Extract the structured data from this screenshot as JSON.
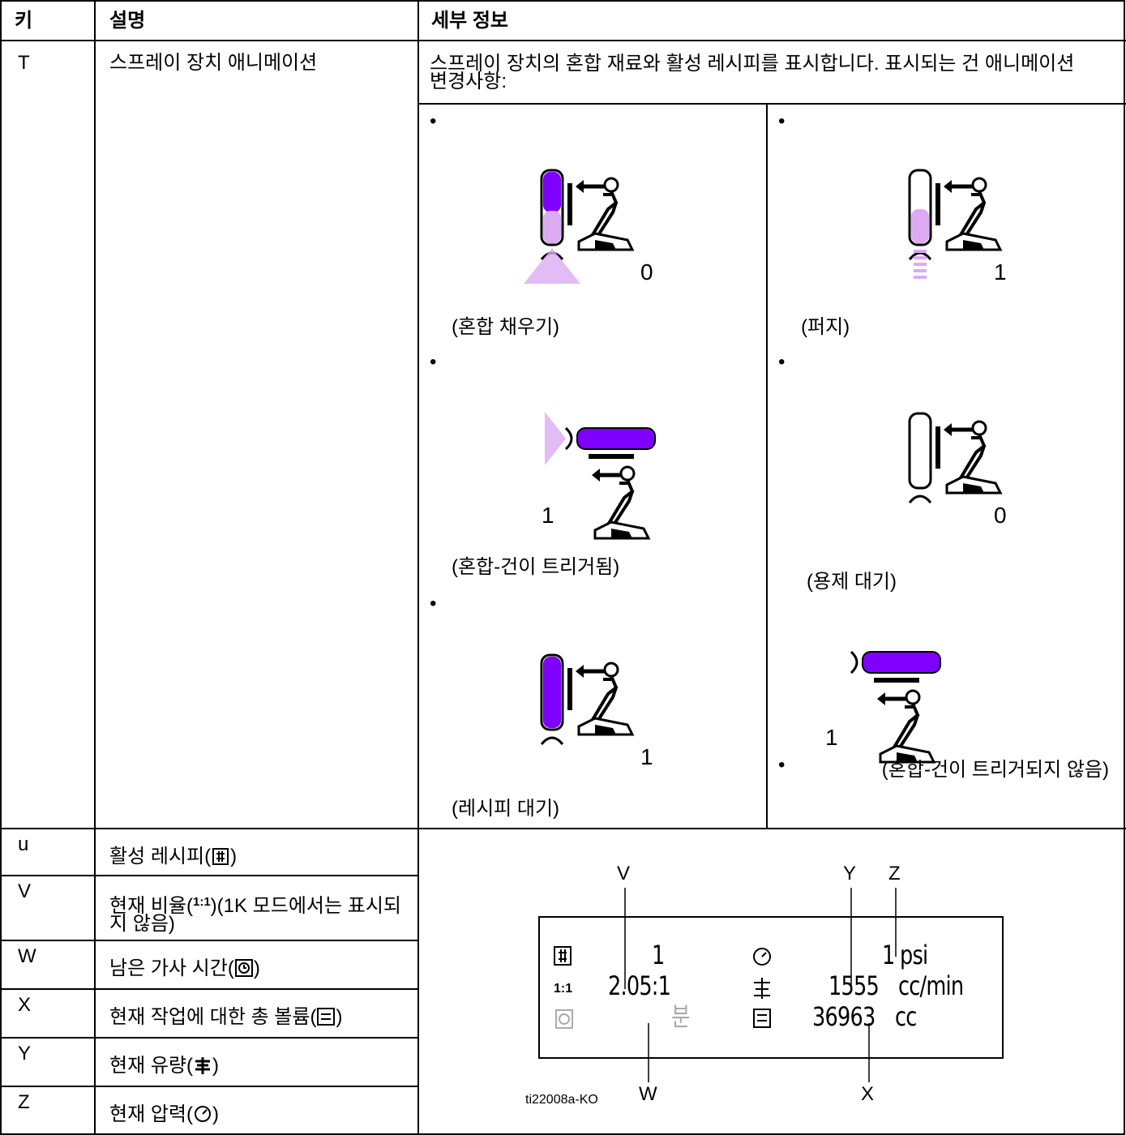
{
  "table": {
    "header": [
      "키",
      "설명",
      "세부 정보"
    ],
    "row_t": {
      "key": "T",
      "description": "스프레이 장치 애니메이션",
      "details": "스프레이 장치의 혼합 재료와 활성 레시피를 표시합니다. 표시되는 건 애니메이션 변경사항:",
      "bullet": "•",
      "states": [
        {
          "caption": "(혼합 채우기)",
          "number": "0"
        },
        {
          "caption": "(퍼지)",
          "number": "1"
        },
        {
          "caption": "(혼합-건이 트리거됨)",
          "number": "1"
        },
        {
          "caption": "(용제 대기)",
          "number": "0"
        },
        {
          "caption": "(레시피 대기)",
          "number": "1"
        },
        {
          "caption": "(혼합-건이 트리거되지 않음)",
          "number": "1"
        }
      ]
    },
    "rows": [
      {
        "key": "u",
        "before": "활성 레시피(",
        "after": ")"
      },
      {
        "key": "V",
        "before": "현재 비율(",
        "icon_text": "1:1",
        "after": ")(1K 모드에서는 표시되지 않음)"
      },
      {
        "key": "W",
        "before": "남은 가사 시간(",
        "after": ")"
      },
      {
        "key": "X",
        "before": "현재 작업에 대한 총 볼륨(",
        "after": ")"
      },
      {
        "key": "Y",
        "before": "현재 유량(",
        "after": ")"
      },
      {
        "key": "Z",
        "before": "현재 압력(",
        "after": ")"
      }
    ]
  },
  "display": {
    "callouts": {
      "v": "V",
      "y": "Y",
      "z": "Z",
      "w": "W",
      "x": "X"
    },
    "recipe": "1",
    "ratio_icon": "1:1",
    "ratio": "2.05:1",
    "time_unit": "분",
    "pressure": "1",
    "pressure_unit": "psi",
    "flow": "1555",
    "flow_unit": "cc/min",
    "volume": "36963",
    "volume_unit": "cc",
    "figure_id": "ti22008a-KO"
  }
}
